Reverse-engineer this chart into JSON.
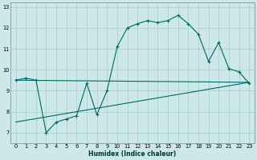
{
  "xlabel": "Humidex (Indice chaleur)",
  "bg_color": "#cce8e8",
  "grid_color": "#aacccc",
  "line_color": "#006666",
  "xlim": [
    -0.5,
    23.5
  ],
  "ylim": [
    6.5,
    13.2
  ],
  "xticks": [
    0,
    1,
    2,
    3,
    4,
    5,
    6,
    7,
    8,
    9,
    10,
    11,
    12,
    13,
    14,
    15,
    16,
    17,
    18,
    19,
    20,
    21,
    22,
    23
  ],
  "yticks": [
    7,
    8,
    9,
    10,
    11,
    12,
    13
  ],
  "line1_x": [
    0,
    23
  ],
  "line1_y": [
    7.5,
    9.4
  ],
  "line2_x": [
    0,
    23
  ],
  "line2_y": [
    9.5,
    9.4
  ],
  "main_x": [
    0,
    1,
    2,
    3,
    4,
    5,
    6,
    7,
    8,
    9,
    10,
    11,
    12,
    13,
    14,
    15,
    16,
    17,
    18,
    19,
    20,
    21,
    22,
    23
  ],
  "main_y": [
    9.5,
    9.6,
    9.5,
    7.0,
    7.5,
    7.65,
    7.8,
    9.35,
    7.85,
    9.0,
    11.1,
    12.0,
    12.2,
    12.35,
    12.25,
    12.35,
    12.6,
    12.2,
    11.7,
    10.4,
    11.3,
    10.05,
    9.9,
    9.35
  ],
  "xlabel_fontsize": 5.5,
  "tick_fontsize": 4.8
}
